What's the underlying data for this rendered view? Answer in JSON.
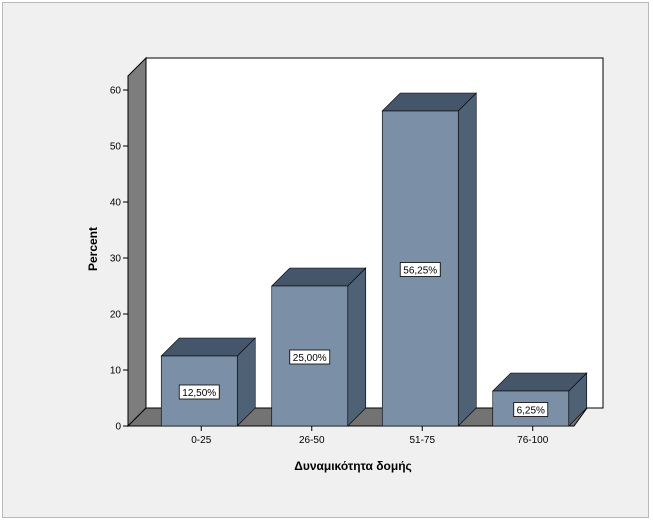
{
  "chart_data": {
    "type": "bar",
    "categories": [
      "0-25",
      "26-50",
      "51-75",
      "76-100"
    ],
    "values": [
      12.5,
      25.0,
      56.25,
      6.25
    ],
    "data_labels": [
      "12,50%",
      "25,00%",
      "56,25%",
      "6,25%"
    ],
    "xlabel": "Δυναμικότητα δομής",
    "ylabel": "Percent",
    "ylim": [
      0,
      60
    ],
    "yticks": [
      0,
      10,
      20,
      30,
      40,
      50,
      60
    ],
    "grid": false,
    "style": "3d",
    "colors": {
      "bar_front": "#7b8fa6",
      "bar_top": "#45566a",
      "bar_side": "#4f6175",
      "floor": "#737373",
      "wall": "#ffffff",
      "background": "#f0f0f0"
    }
  }
}
